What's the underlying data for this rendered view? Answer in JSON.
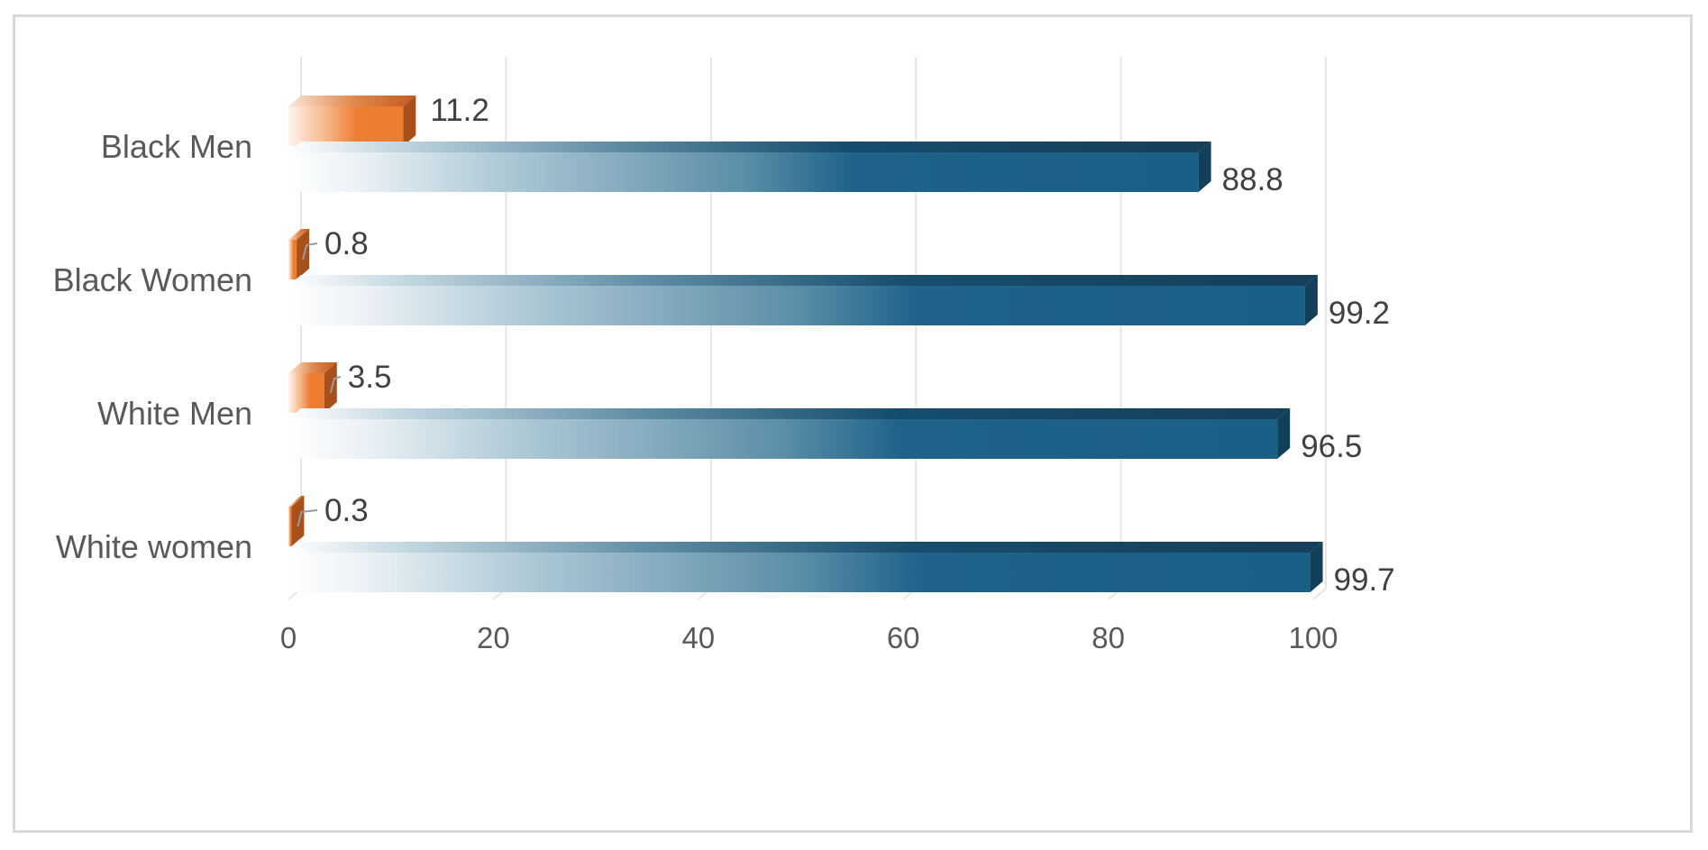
{
  "chart_data": {
    "type": "bar",
    "orientation": "horizontal",
    "style": "3d-clustered",
    "categories": [
      "Black Men",
      "Black Women",
      "White Men",
      "White women"
    ],
    "series": [
      {
        "values": [
          11.2,
          0.8,
          3.5,
          0.3
        ],
        "color": "#ED7D31"
      },
      {
        "values": [
          88.8,
          99.2,
          96.5,
          99.7
        ],
        "color": "#1F6389"
      }
    ],
    "xlim": [
      0,
      100
    ],
    "xticks": [
      0,
      20,
      40,
      60,
      80,
      100
    ],
    "grid": true,
    "legend": "none",
    "title": "",
    "xlabel": "",
    "ylabel": ""
  }
}
